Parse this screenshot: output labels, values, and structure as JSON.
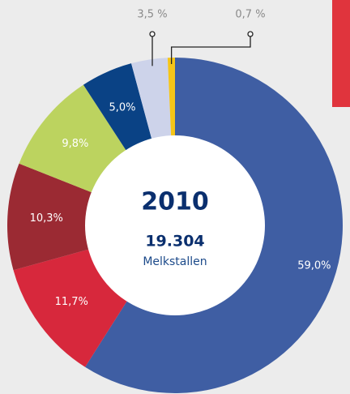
{
  "chart_data": {
    "type": "donut",
    "center_title": "2010",
    "center_value": "19.304",
    "center_label": "Melkstallen",
    "categories": [
      null,
      null,
      null,
      null,
      null,
      null,
      null
    ],
    "values": [
      59.0,
      11.7,
      10.3,
      9.8,
      5.0,
      3.5,
      0.7
    ],
    "value_labels": [
      "59,0%",
      "11,7%",
      "10,3%",
      "9,8%",
      "5,0%",
      "3,5 %",
      "0,7 %"
    ],
    "colors": [
      "#3f5ea3",
      "#d7283c",
      "#9b2a33",
      "#bcd35f",
      "#0a4285",
      "#cdd3ea",
      "#f5c518"
    ]
  }
}
